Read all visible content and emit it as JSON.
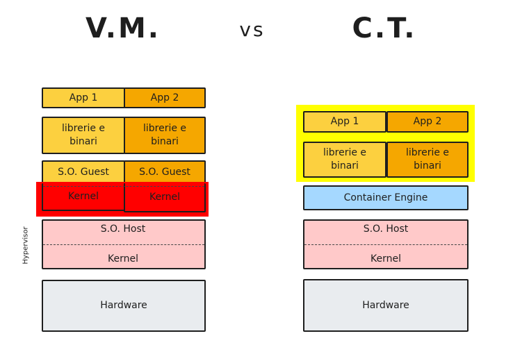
{
  "titles": {
    "left": "V.M.",
    "vs": "vs",
    "right": "C.T."
  },
  "colors": {
    "app1": "#fcd03f",
    "app2": "#f5a700",
    "kernel_guest": "#ff0000",
    "host": "#ffc9c9",
    "hardware": "#e9ecef",
    "engine": "#a5d8ff",
    "highlight": "#ffff00"
  },
  "vm": {
    "app1": "App 1",
    "app2": "App 2",
    "lib1": "librerie e binari",
    "lib2": "librerie e binari",
    "guest1": "S.O. Guest",
    "guest2": "S.O. Guest",
    "kernel1": "Kernel",
    "kernel2": "Kernel",
    "host": "S.O. Host",
    "host_kernel": "Kernel",
    "hypervisor": "Hypervisor",
    "hardware": "Hardware"
  },
  "ct": {
    "app1": "App 1",
    "app2": "App 2",
    "lib1": "librerie e binari",
    "lib2": "librerie e binari",
    "engine": "Container Engine",
    "host": "S.O. Host",
    "host_kernel": "Kernel",
    "hardware": "Hardware"
  }
}
